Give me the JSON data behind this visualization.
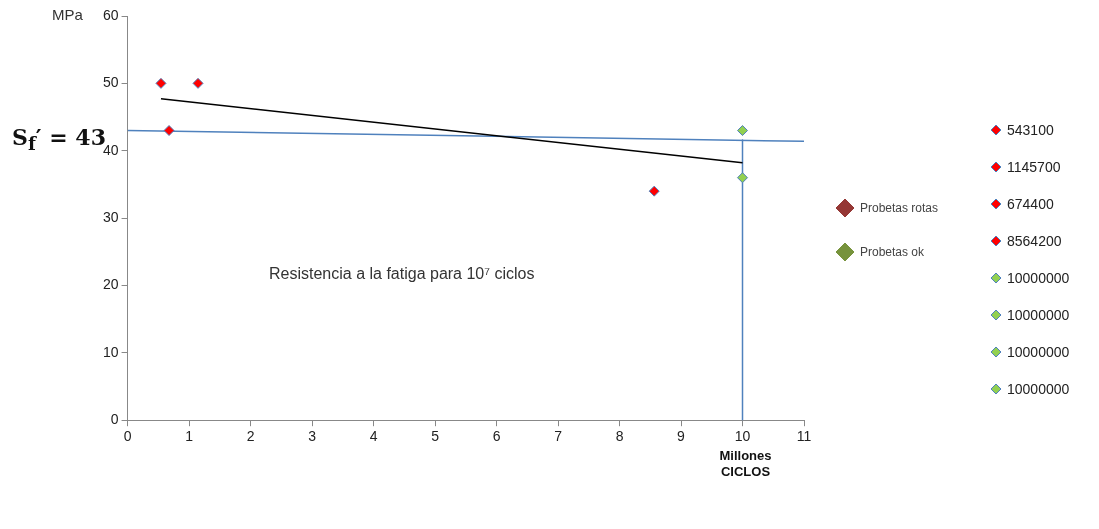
{
  "chart_data": {
    "type": "scatter",
    "ylabel": "MPa",
    "xlabel": "Millones CICLOS",
    "xlim": [
      0,
      11
    ],
    "xticks": [
      0,
      1,
      2,
      3,
      4,
      5,
      6,
      7,
      8,
      9,
      10,
      11
    ],
    "ylim": [
      0,
      60
    ],
    "yticks": [
      0,
      10,
      20,
      30,
      40,
      50,
      60
    ],
    "grid": false,
    "legend": "right",
    "marker": "diamond",
    "annotations": [
      "S$_{f}$′ = 43",
      "Resistencia a la fatiga para 10⁷ ciclos"
    ],
    "series": [
      {
        "name": "543100",
        "color": "#ff0000",
        "x": [
          0.5431
        ],
        "values": [
          50
        ]
      },
      {
        "name": "1145700",
        "color": "#ff0000",
        "x": [
          1.1457
        ],
        "values": [
          50
        ]
      },
      {
        "name": "674400",
        "color": "#ff0000",
        "x": [
          0.6744
        ],
        "values": [
          43
        ]
      },
      {
        "name": "8564200",
        "color": "#ff0000",
        "x": [
          8.5642
        ],
        "values": [
          34
        ]
      },
      {
        "name": "10000000",
        "color": "#92d050",
        "x": [
          10
        ],
        "values": [
          43
        ]
      },
      {
        "name": "10000000",
        "color": "#92d050",
        "x": [
          10
        ],
        "values": [
          36
        ]
      },
      {
        "name": "10000000",
        "color": "#92d050",
        "x": [
          null
        ],
        "values": [
          null
        ]
      },
      {
        "name": "10000000",
        "color": "#92d050",
        "x": [
          null
        ],
        "values": [
          null
        ]
      },
      {
        "name": "Probetas rotas",
        "color": "#953735",
        "values": [
          null
        ]
      },
      {
        "name": "Probetas ok",
        "color": "#77933c",
        "values": [
          null
        ]
      },
      {
        "type": "line",
        "color": "#000000",
        "marker": "none",
        "x": [
          0.5431,
          10
        ],
        "values": [
          47.7,
          38.2
        ]
      },
      {
        "type": "line",
        "color": "#4f81bd",
        "marker": "none",
        "x": [
          0,
          11
        ],
        "values": [
          43,
          41.4
        ]
      },
      {
        "type": "line",
        "color": "#4f81bd",
        "marker": "none",
        "x": [
          10,
          10
        ],
        "values": [
          41.6,
          0
        ]
      }
    ]
  }
}
